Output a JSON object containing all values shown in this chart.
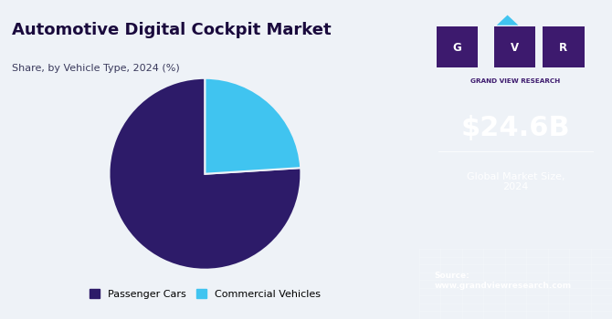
{
  "title": "Automotive Digital Cockpit Market",
  "subtitle": "Share, by Vehicle Type, 2024 (%)",
  "pie_values": [
    76,
    24
  ],
  "pie_labels": [
    "Passenger Cars",
    "Commercial Vehicles"
  ],
  "pie_colors": [
    "#2d1b69",
    "#40c4f0"
  ],
  "pie_startangle": 90,
  "left_bg": "#eef2f7",
  "right_bg": "#3d1a6e",
  "right_bg_bottom": "#4a5a9a",
  "market_size": "$24.6B",
  "market_label": "Global Market Size,\n2024",
  "source_text": "Source:\nwww.grandviewresearch.com",
  "legend_labels": [
    "Passenger Cars",
    "Commercial Vehicles"
  ],
  "legend_colors": [
    "#2d1b69",
    "#40c4f0"
  ],
  "title_color": "#1a0a3d",
  "subtitle_color": "#3a3a5c",
  "logo_bg": "#3d1a6e",
  "cyan_color": "#40c4f0",
  "gvr_text": "GRAND VIEW RESEARCH"
}
